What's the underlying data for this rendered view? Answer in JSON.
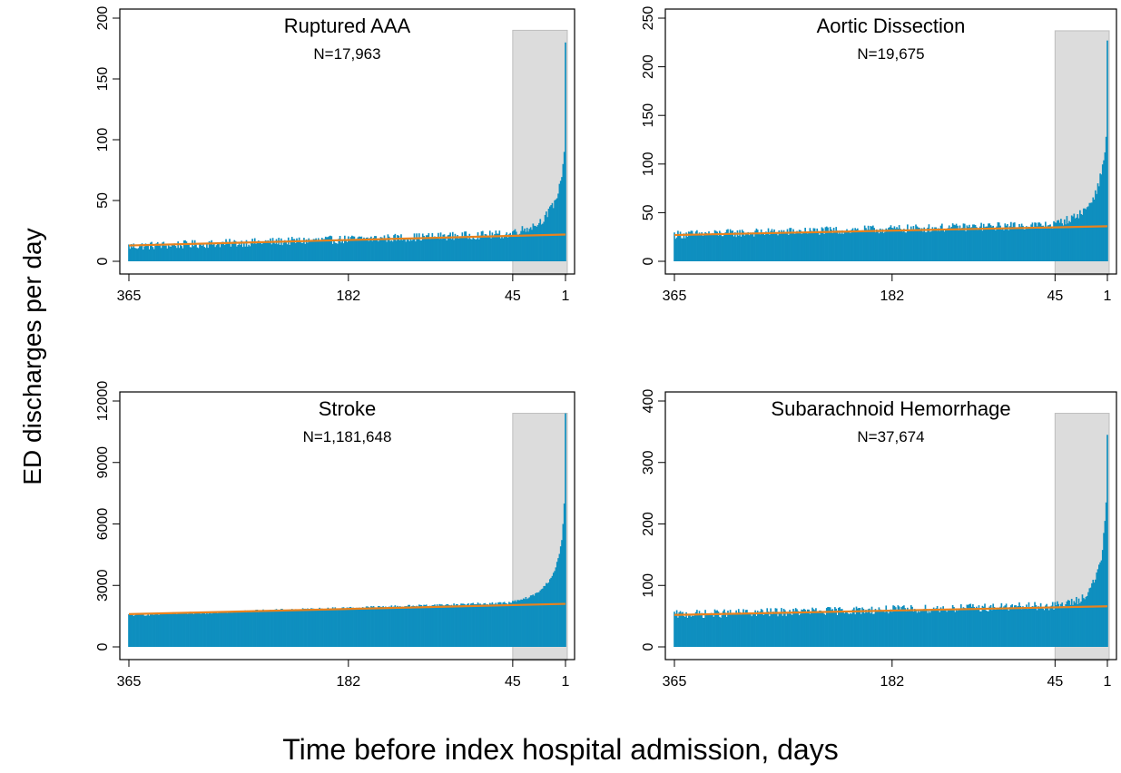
{
  "figure": {
    "ylabel": "ED discharges per day",
    "xlabel": "Time before index hospital admission, days"
  },
  "colors": {
    "bars": "#0e8fbf",
    "trend": "#e8821e",
    "shade": "#dcdcdc",
    "shade_edge": "#bdbdbd"
  },
  "chart_data": [
    {
      "type": "bar",
      "title": "Ruptured AAA",
      "subtitle": "N=17,963",
      "x_ticks": [
        365,
        182,
        45,
        1
      ],
      "y_ticks": [
        0,
        50,
        100,
        150,
        200
      ],
      "xlim": [
        365,
        1
      ],
      "ylim": [
        0,
        200
      ],
      "shaded_window": {
        "from": 45,
        "to": 1,
        "ymax": 190
      },
      "baseline": {
        "start": 12,
        "end": 22
      },
      "late_days": [
        {
          "day": 45,
          "value": 24
        },
        {
          "day": 40,
          "value": 25
        },
        {
          "day": 35,
          "value": 26
        },
        {
          "day": 30,
          "value": 28
        },
        {
          "day": 25,
          "value": 30
        },
        {
          "day": 20,
          "value": 34
        },
        {
          "day": 15,
          "value": 40
        },
        {
          "day": 10,
          "value": 48
        },
        {
          "day": 6,
          "value": 60
        },
        {
          "day": 4,
          "value": 72
        },
        {
          "day": 3,
          "value": 80
        },
        {
          "day": 2,
          "value": 90
        },
        {
          "day": 1,
          "value": 180
        }
      ],
      "trend": {
        "start": 13,
        "end": 22
      }
    },
    {
      "type": "bar",
      "title": "Aortic Dissection",
      "subtitle": "N=19,675",
      "x_ticks": [
        365,
        182,
        45,
        1
      ],
      "y_ticks": [
        0,
        50,
        100,
        150,
        200,
        250
      ],
      "xlim": [
        365,
        1
      ],
      "ylim": [
        0,
        250
      ],
      "shaded_window": {
        "from": 45,
        "to": 1,
        "ymax": 237
      },
      "baseline": {
        "start": 27,
        "end": 37
      },
      "late_days": [
        {
          "day": 45,
          "value": 38
        },
        {
          "day": 40,
          "value": 40
        },
        {
          "day": 35,
          "value": 42
        },
        {
          "day": 30,
          "value": 44
        },
        {
          "day": 25,
          "value": 48
        },
        {
          "day": 20,
          "value": 52
        },
        {
          "day": 15,
          "value": 60
        },
        {
          "day": 10,
          "value": 72
        },
        {
          "day": 6,
          "value": 90
        },
        {
          "day": 4,
          "value": 105
        },
        {
          "day": 3,
          "value": 112
        },
        {
          "day": 2,
          "value": 128
        },
        {
          "day": 1,
          "value": 227
        }
      ],
      "trend": {
        "start": 27,
        "end": 36
      }
    },
    {
      "type": "bar",
      "title": "Stroke",
      "subtitle": "N=1,181,648",
      "x_ticks": [
        365,
        182,
        45,
        1
      ],
      "y_ticks": [
        0,
        3000,
        6000,
        9000,
        12000
      ],
      "xlim": [
        365,
        1
      ],
      "ylim": [
        0,
        12000
      ],
      "shaded_window": {
        "from": 45,
        "to": 1,
        "ymax": 11400
      },
      "baseline": {
        "start": 1550,
        "end": 2150
      },
      "late_days": [
        {
          "day": 45,
          "value": 2200
        },
        {
          "day": 40,
          "value": 2250
        },
        {
          "day": 35,
          "value": 2350
        },
        {
          "day": 30,
          "value": 2450
        },
        {
          "day": 25,
          "value": 2600
        },
        {
          "day": 20,
          "value": 2850
        },
        {
          "day": 15,
          "value": 3200
        },
        {
          "day": 10,
          "value": 3700
        },
        {
          "day": 6,
          "value": 4500
        },
        {
          "day": 4,
          "value": 5200
        },
        {
          "day": 3,
          "value": 6000
        },
        {
          "day": 2,
          "value": 7000
        },
        {
          "day": 1,
          "value": 11400
        }
      ],
      "trend": {
        "start": 1600,
        "end": 2100
      }
    },
    {
      "type": "bar",
      "title": "Subarachnoid Hemorrhage",
      "subtitle": "N=37,674",
      "x_ticks": [
        365,
        182,
        45,
        1
      ],
      "y_ticks": [
        0,
        100,
        200,
        300,
        400
      ],
      "xlim": [
        365,
        1
      ],
      "ylim": [
        0,
        400
      ],
      "shaded_window": {
        "from": 45,
        "to": 1,
        "ymax": 380
      },
      "baseline": {
        "start": 52,
        "end": 66
      },
      "late_days": [
        {
          "day": 45,
          "value": 66
        },
        {
          "day": 40,
          "value": 68
        },
        {
          "day": 35,
          "value": 70
        },
        {
          "day": 30,
          "value": 72
        },
        {
          "day": 25,
          "value": 76
        },
        {
          "day": 20,
          "value": 82
        },
        {
          "day": 15,
          "value": 95
        },
        {
          "day": 10,
          "value": 115
        },
        {
          "day": 6,
          "value": 145
        },
        {
          "day": 4,
          "value": 180
        },
        {
          "day": 3,
          "value": 205
        },
        {
          "day": 2,
          "value": 235
        },
        {
          "day": 1,
          "value": 345
        }
      ],
      "trend": {
        "start": 52,
        "end": 66
      }
    }
  ]
}
